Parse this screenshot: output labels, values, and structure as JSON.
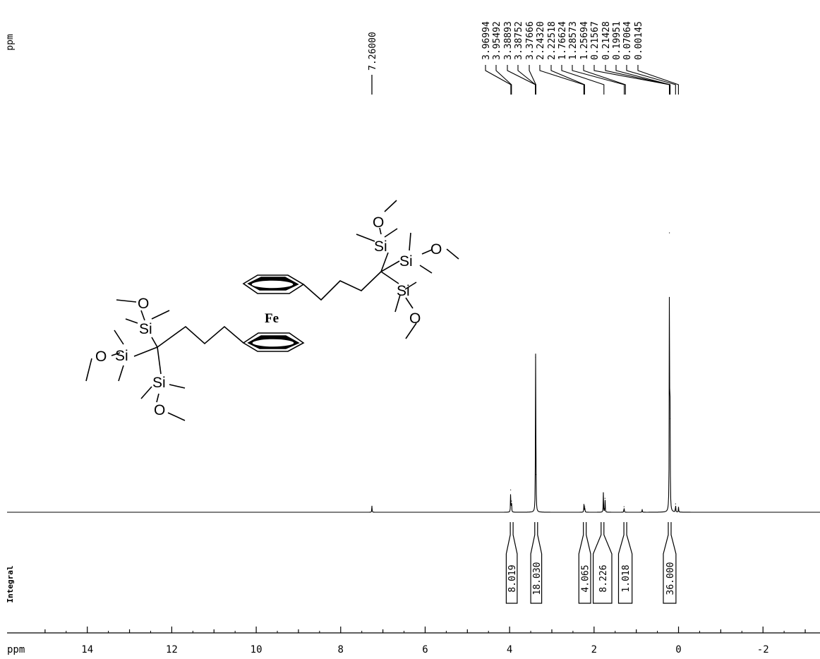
{
  "chart_data": {
    "type": "line",
    "title": "",
    "xlabel": "ppm",
    "ylabel": "",
    "x_reversed": true,
    "xlim": [
      15.9,
      -3.35
    ],
    "x_ticks": [
      {
        "value": 14,
        "label": "14"
      },
      {
        "value": 12,
        "label": "12"
      },
      {
        "value": 10,
        "label": "10"
      },
      {
        "value": 8,
        "label": "8"
      },
      {
        "value": 6,
        "label": "6"
      },
      {
        "value": 4,
        "label": "4"
      },
      {
        "value": 2,
        "label": "2"
      },
      {
        "value": 0,
        "label": "0"
      },
      {
        "value": -2,
        "label": "-2"
      }
    ],
    "peak_list_unit": "ppm",
    "peak_list": [
      "7.26000",
      "3.96994",
      "3.95492",
      "3.38893",
      "3.38752",
      "3.37666",
      "2.24320",
      "2.22518",
      "1.76624",
      "1.28573",
      "1.25694",
      "0.21567",
      "0.21428",
      "0.19951",
      "0.07064",
      "0.00145"
    ],
    "integral_label": "Integral",
    "integrals": [
      {
        "from": 4.08,
        "to": 3.82,
        "value": "8.019"
      },
      {
        "from": 3.5,
        "to": 3.24,
        "value": "18.030"
      },
      {
        "from": 2.36,
        "to": 2.08,
        "value": "4.065"
      },
      {
        "from": 2.02,
        "to": 1.58,
        "value": "8.226"
      },
      {
        "from": 1.42,
        "to": 1.1,
        "value": "1.018"
      },
      {
        "from": 0.36,
        "to": 0.06,
        "value": "36.000"
      }
    ],
    "series": [
      {
        "peaks": [
          {
            "ppm": 7.26,
            "height": 0.022
          },
          {
            "ppm": 3.975,
            "height": 0.08
          },
          {
            "ppm": 3.955,
            "height": 0.04
          },
          {
            "ppm": 3.385,
            "height": 0.555
          },
          {
            "ppm": 3.376,
            "height": 0.135
          },
          {
            "ppm": 2.24,
            "height": 0.028
          },
          {
            "ppm": 2.22,
            "height": 0.022
          },
          {
            "ppm": 1.78,
            "height": 0.07
          },
          {
            "ppm": 1.74,
            "height": 0.05
          },
          {
            "ppm": 1.29,
            "height": 0.02
          },
          {
            "ppm": 0.86,
            "height": 0.01
          },
          {
            "ppm": 0.215,
            "height": 1.0
          },
          {
            "ppm": 0.2,
            "height": 0.335
          },
          {
            "ppm": 0.07,
            "height": 0.03
          },
          {
            "ppm": 0.0,
            "height": 0.018
          }
        ]
      }
    ]
  },
  "molecule": {
    "atoms": {
      "fe": "Fe",
      "si": "Si",
      "o": "O"
    }
  }
}
